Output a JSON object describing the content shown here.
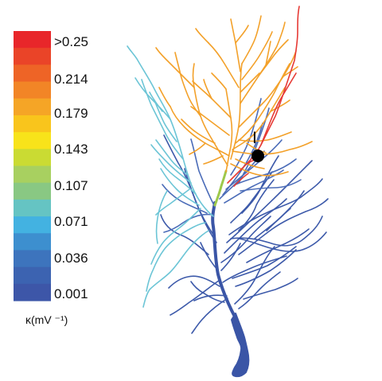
{
  "colorbar": {
    "colors": [
      "#e8262a",
      "#ea4428",
      "#ee6426",
      "#f28526",
      "#f5a526",
      "#f9c51c",
      "#f8e31a",
      "#cadb33",
      "#a8d060",
      "#89c883",
      "#65c4c3",
      "#43b2e1",
      "#3d8fcf",
      "#3d74bd",
      "#3c63b1",
      "#3d56a8"
    ],
    "tick_labels": [
      ">0.25",
      "0.214",
      "0.179",
      "0.143",
      "0.107",
      "0.071",
      "0.036",
      "0.001"
    ],
    "unit_label": "κ(mV ⁻¹)"
  },
  "marker": {
    "label": "I",
    "color": "#000000"
  },
  "neuron": {
    "soma_color": "#3a55a6",
    "branch_colors": {
      "basal": "#3d5aaa",
      "apical_blue": "#4b6cb8",
      "cyan": "#6cc5d6",
      "green": "#9dc84b",
      "orange": "#f3a12a",
      "red": "#e63a35"
    }
  }
}
